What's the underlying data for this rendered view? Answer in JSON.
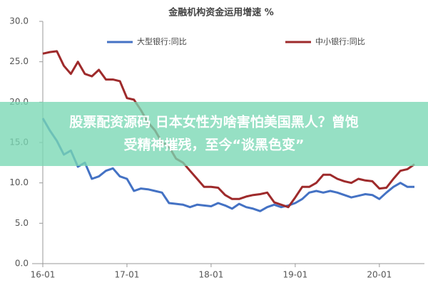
{
  "chart_data": {
    "type": "line",
    "title": "金融机构资金运用增速 %",
    "x": [
      "16-01",
      null,
      null,
      null,
      null,
      null,
      null,
      null,
      null,
      null,
      null,
      null,
      "17-01",
      null,
      null,
      null,
      null,
      null,
      null,
      null,
      null,
      null,
      null,
      null,
      "18-01",
      null,
      null,
      null,
      null,
      null,
      null,
      null,
      null,
      null,
      null,
      null,
      "19-01",
      null,
      null,
      null,
      null,
      null,
      null,
      null,
      null,
      null,
      null,
      null,
      "20-01",
      null,
      null,
      null,
      null,
      null
    ],
    "series": [
      {
        "name": "大型银行:同比",
        "color": "#4472c4",
        "values": [
          18.0,
          16.5,
          15.2,
          13.5,
          14.0,
          12.0,
          12.5,
          10.5,
          10.8,
          11.5,
          11.8,
          10.8,
          10.5,
          9.0,
          9.3,
          9.2,
          9.0,
          8.8,
          7.5,
          7.4,
          7.3,
          7.0,
          7.3,
          7.2,
          7.1,
          7.5,
          7.2,
          6.8,
          7.4,
          7.0,
          6.8,
          6.5,
          7.0,
          7.3,
          7.0,
          7.2,
          7.5,
          8.0,
          8.8,
          9.0,
          8.8,
          9.0,
          8.8,
          8.5,
          8.2,
          8.4,
          8.6,
          8.5,
          8.0,
          8.8,
          9.5,
          10.0,
          9.5,
          9.5
        ]
      },
      {
        "name": "中小银行:同比",
        "color": "#9e2a2b",
        "values": [
          26.0,
          26.2,
          26.3,
          24.5,
          23.5,
          25.0,
          23.5,
          23.2,
          24.0,
          22.8,
          22.8,
          22.6,
          20.5,
          20.3,
          19.0,
          17.5,
          16.5,
          15.0,
          14.5,
          13.0,
          12.5,
          11.5,
          10.5,
          9.5,
          9.5,
          9.4,
          8.5,
          8.0,
          8.0,
          8.3,
          8.5,
          8.6,
          8.8,
          7.6,
          7.3,
          7.0,
          8.2,
          9.5,
          9.5,
          10.0,
          11.0,
          11.0,
          10.5,
          10.2,
          10.0,
          10.5,
          10.3,
          10.2,
          9.3,
          9.4,
          10.5,
          11.5,
          11.7,
          12.3
        ]
      }
    ],
    "ylim": [
      0,
      30
    ],
    "yticks": [
      {
        "value": 0,
        "label": "0.0"
      },
      {
        "value": 5,
        "label": "5.0"
      },
      {
        "value": 10,
        "label": "10.0"
      },
      {
        "value": 15,
        "label": "15.0"
      },
      {
        "value": 20,
        "label": "20.0"
      },
      {
        "value": 25,
        "label": "25.0"
      },
      {
        "value": 30,
        "label": "30.0"
      }
    ],
    "annotations": [
      "股票配资源码 日本女性为啥害怕美国黑人？曾饱",
      "受精神摧残，至今“谈黑色变”"
    ]
  }
}
